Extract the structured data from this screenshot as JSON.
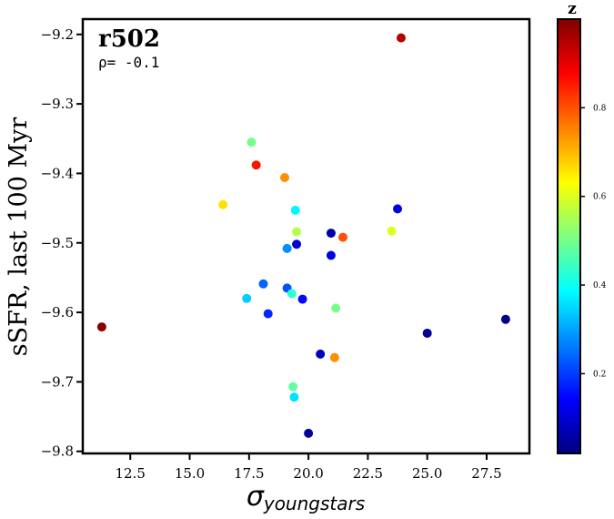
{
  "chart_data": {
    "type": "scatter",
    "title": "r502",
    "annotation": "ρ= -0.1",
    "xlabel": "σ",
    "xlabel_sub": "youngstars",
    "ylabel": "sSFR, last 100 Myr",
    "xlim": [
      10.5,
      29.3
    ],
    "ylim": [
      -9.803,
      -9.178
    ],
    "xticks": [
      "12.5",
      "15.0",
      "17.5",
      "20.0",
      "22.5",
      "25.0",
      "27.5"
    ],
    "yticks": [
      "−9.2",
      "−9.3",
      "−9.4",
      "−9.5",
      "−9.6",
      "−9.7",
      "−9.8"
    ],
    "grid": false,
    "legend": "none",
    "colorbar": {
      "label": "z",
      "range": [
        0.02,
        1.0
      ],
      "ticks": [
        "0.2",
        "0.4",
        "0.6",
        "0.8"
      ],
      "colormap": "jet"
    },
    "points": [
      {
        "x": 11.3,
        "y": -9.621,
        "z": 0.99
      },
      {
        "x": 16.4,
        "y": -9.445,
        "z": 0.66
      },
      {
        "x": 17.4,
        "y": -9.58,
        "z": 0.34
      },
      {
        "x": 17.6,
        "y": -9.355,
        "z": 0.5
      },
      {
        "x": 17.8,
        "y": -9.388,
        "z": 0.86
      },
      {
        "x": 18.1,
        "y": -9.559,
        "z": 0.24
      },
      {
        "x": 18.3,
        "y": -9.602,
        "z": 0.18
      },
      {
        "x": 19.0,
        "y": -9.406,
        "z": 0.74
      },
      {
        "x": 19.1,
        "y": -9.508,
        "z": 0.28
      },
      {
        "x": 19.1,
        "y": -9.565,
        "z": 0.22
      },
      {
        "x": 19.3,
        "y": -9.573,
        "z": 0.43
      },
      {
        "x": 19.35,
        "y": -9.707,
        "z": 0.48
      },
      {
        "x": 19.4,
        "y": -9.722,
        "z": 0.36
      },
      {
        "x": 19.45,
        "y": -9.453,
        "z": 0.38
      },
      {
        "x": 19.5,
        "y": -9.502,
        "z": 0.1
      },
      {
        "x": 19.5,
        "y": -9.484,
        "z": 0.56
      },
      {
        "x": 19.75,
        "y": -9.581,
        "z": 0.15
      },
      {
        "x": 20.0,
        "y": -9.774,
        "z": 0.05
      },
      {
        "x": 20.5,
        "y": -9.66,
        "z": 0.08
      },
      {
        "x": 20.95,
        "y": -9.486,
        "z": 0.06
      },
      {
        "x": 20.95,
        "y": -9.518,
        "z": 0.12
      },
      {
        "x": 21.1,
        "y": -9.665,
        "z": 0.74
      },
      {
        "x": 21.15,
        "y": -9.594,
        "z": 0.5
      },
      {
        "x": 21.45,
        "y": -9.492,
        "z": 0.8
      },
      {
        "x": 23.5,
        "y": -9.483,
        "z": 0.6
      },
      {
        "x": 23.75,
        "y": -9.451,
        "z": 0.12
      },
      {
        "x": 23.9,
        "y": -9.205,
        "z": 0.95
      },
      {
        "x": 25.0,
        "y": -9.63,
        "z": 0.04
      },
      {
        "x": 28.3,
        "y": -9.61,
        "z": 0.03
      }
    ]
  }
}
